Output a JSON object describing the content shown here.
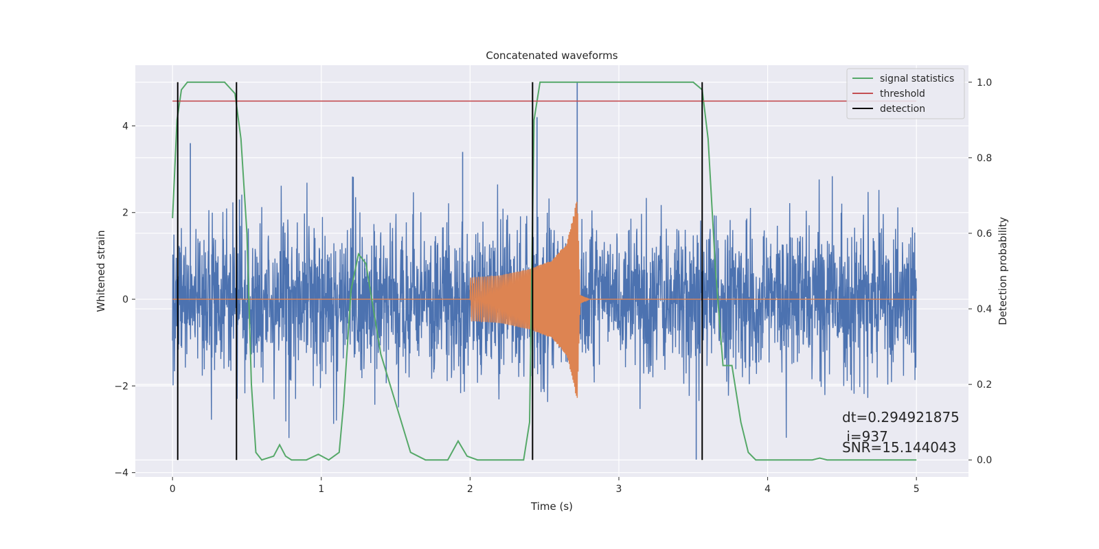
{
  "chart_data": {
    "type": "line",
    "title": "Concatenated waveforms",
    "xlabel": "Time (s)",
    "ylabel": "Whitened strain",
    "ylabel_right": "Detection probability",
    "xlim": [
      -0.25,
      5.35
    ],
    "ylim": [
      -4.1,
      5.4
    ],
    "ylim_right": [
      -0.045,
      1.045
    ],
    "x_ticks": [
      "0",
      "1",
      "2",
      "3",
      "4",
      "5"
    ],
    "y_ticks": [
      "−4",
      "−2",
      "0",
      "2",
      "4"
    ],
    "y_ticks_right": [
      "0.0",
      "0.2",
      "0.4",
      "0.6",
      "0.8",
      "1.0"
    ],
    "grid": true,
    "legend_position": "top-right",
    "colors": {
      "noise": "#4c72b0",
      "injection": "#dd8452",
      "signal_statistics": "#55a868",
      "threshold": "#c44e52",
      "detection": "#000000",
      "plot_background": "#eaeaf2"
    },
    "series": [
      {
        "name": "",
        "axis": "left",
        "description_of_range": "whitened noise strain, 0 to 5 s, roughly between -3.7 and 5.0",
        "x_range": [
          0,
          5
        ],
        "peak_values": [
          [
            0.12,
            3.6
          ],
          [
            0.45,
            2.3
          ],
          [
            1.95,
            3.4
          ],
          [
            2.45,
            4.2
          ],
          [
            2.72,
            5.0
          ],
          [
            3.52,
            -3.7
          ]
        ]
      },
      {
        "name": "",
        "axis": "left",
        "description_of_range": "chirp injection from 2.0 s to 2.73 s, amplitude growing from ~0.5 to ~2.4",
        "points": [
          [
            2.0,
            0.5
          ],
          [
            2.2,
            0.55
          ],
          [
            2.4,
            0.7
          ],
          [
            2.55,
            0.9
          ],
          [
            2.65,
            1.3
          ],
          [
            2.7,
            2.0
          ],
          [
            2.72,
            2.4
          ],
          [
            2.74,
            0.1
          ],
          [
            2.8,
            0.0
          ]
        ]
      },
      {
        "name": "signal statistics",
        "axis": "right",
        "points": [
          [
            0.0,
            0.64
          ],
          [
            0.03,
            0.9
          ],
          [
            0.06,
            0.98
          ],
          [
            0.1,
            1.0
          ],
          [
            0.35,
            1.0
          ],
          [
            0.42,
            0.97
          ],
          [
            0.46,
            0.85
          ],
          [
            0.5,
            0.6
          ],
          [
            0.53,
            0.2
          ],
          [
            0.56,
            0.02
          ],
          [
            0.6,
            0.0
          ],
          [
            0.68,
            0.01
          ],
          [
            0.72,
            0.04
          ],
          [
            0.76,
            0.01
          ],
          [
            0.8,
            0.0
          ],
          [
            0.9,
            0.0
          ],
          [
            0.98,
            0.015
          ],
          [
            1.05,
            0.0
          ],
          [
            1.12,
            0.02
          ],
          [
            1.15,
            0.15
          ],
          [
            1.2,
            0.45
          ],
          [
            1.25,
            0.545
          ],
          [
            1.3,
            0.52
          ],
          [
            1.35,
            0.4
          ],
          [
            1.4,
            0.28
          ],
          [
            1.5,
            0.15
          ],
          [
            1.6,
            0.02
          ],
          [
            1.7,
            0.0
          ],
          [
            1.85,
            0.0
          ],
          [
            1.92,
            0.05
          ],
          [
            1.98,
            0.01
          ],
          [
            2.05,
            0.0
          ],
          [
            2.36,
            0.0
          ],
          [
            2.4,
            0.1
          ],
          [
            2.43,
            0.9
          ],
          [
            2.47,
            1.0
          ],
          [
            3.5,
            1.0
          ],
          [
            3.56,
            0.98
          ],
          [
            3.6,
            0.85
          ],
          [
            3.65,
            0.5
          ],
          [
            3.7,
            0.25
          ],
          [
            3.76,
            0.25
          ],
          [
            3.82,
            0.1
          ],
          [
            3.87,
            0.02
          ],
          [
            3.92,
            0.0
          ],
          [
            4.3,
            0.0
          ],
          [
            4.35,
            0.005
          ],
          [
            4.4,
            0.0
          ],
          [
            5.0,
            0.0
          ]
        ]
      },
      {
        "name": "threshold",
        "axis": "right",
        "points": [
          [
            0.0,
            0.95
          ],
          [
            5.0,
            0.95
          ]
        ]
      },
      {
        "name": "detection",
        "axis": "right",
        "vertical_lines_x": [
          0.035,
          0.43,
          2.42,
          3.56
        ],
        "y_span": [
          0.0,
          1.0
        ]
      }
    ],
    "annotations": [
      "dt=0.294921875",
      " i=937",
      "SNR=15.144043"
    ]
  }
}
